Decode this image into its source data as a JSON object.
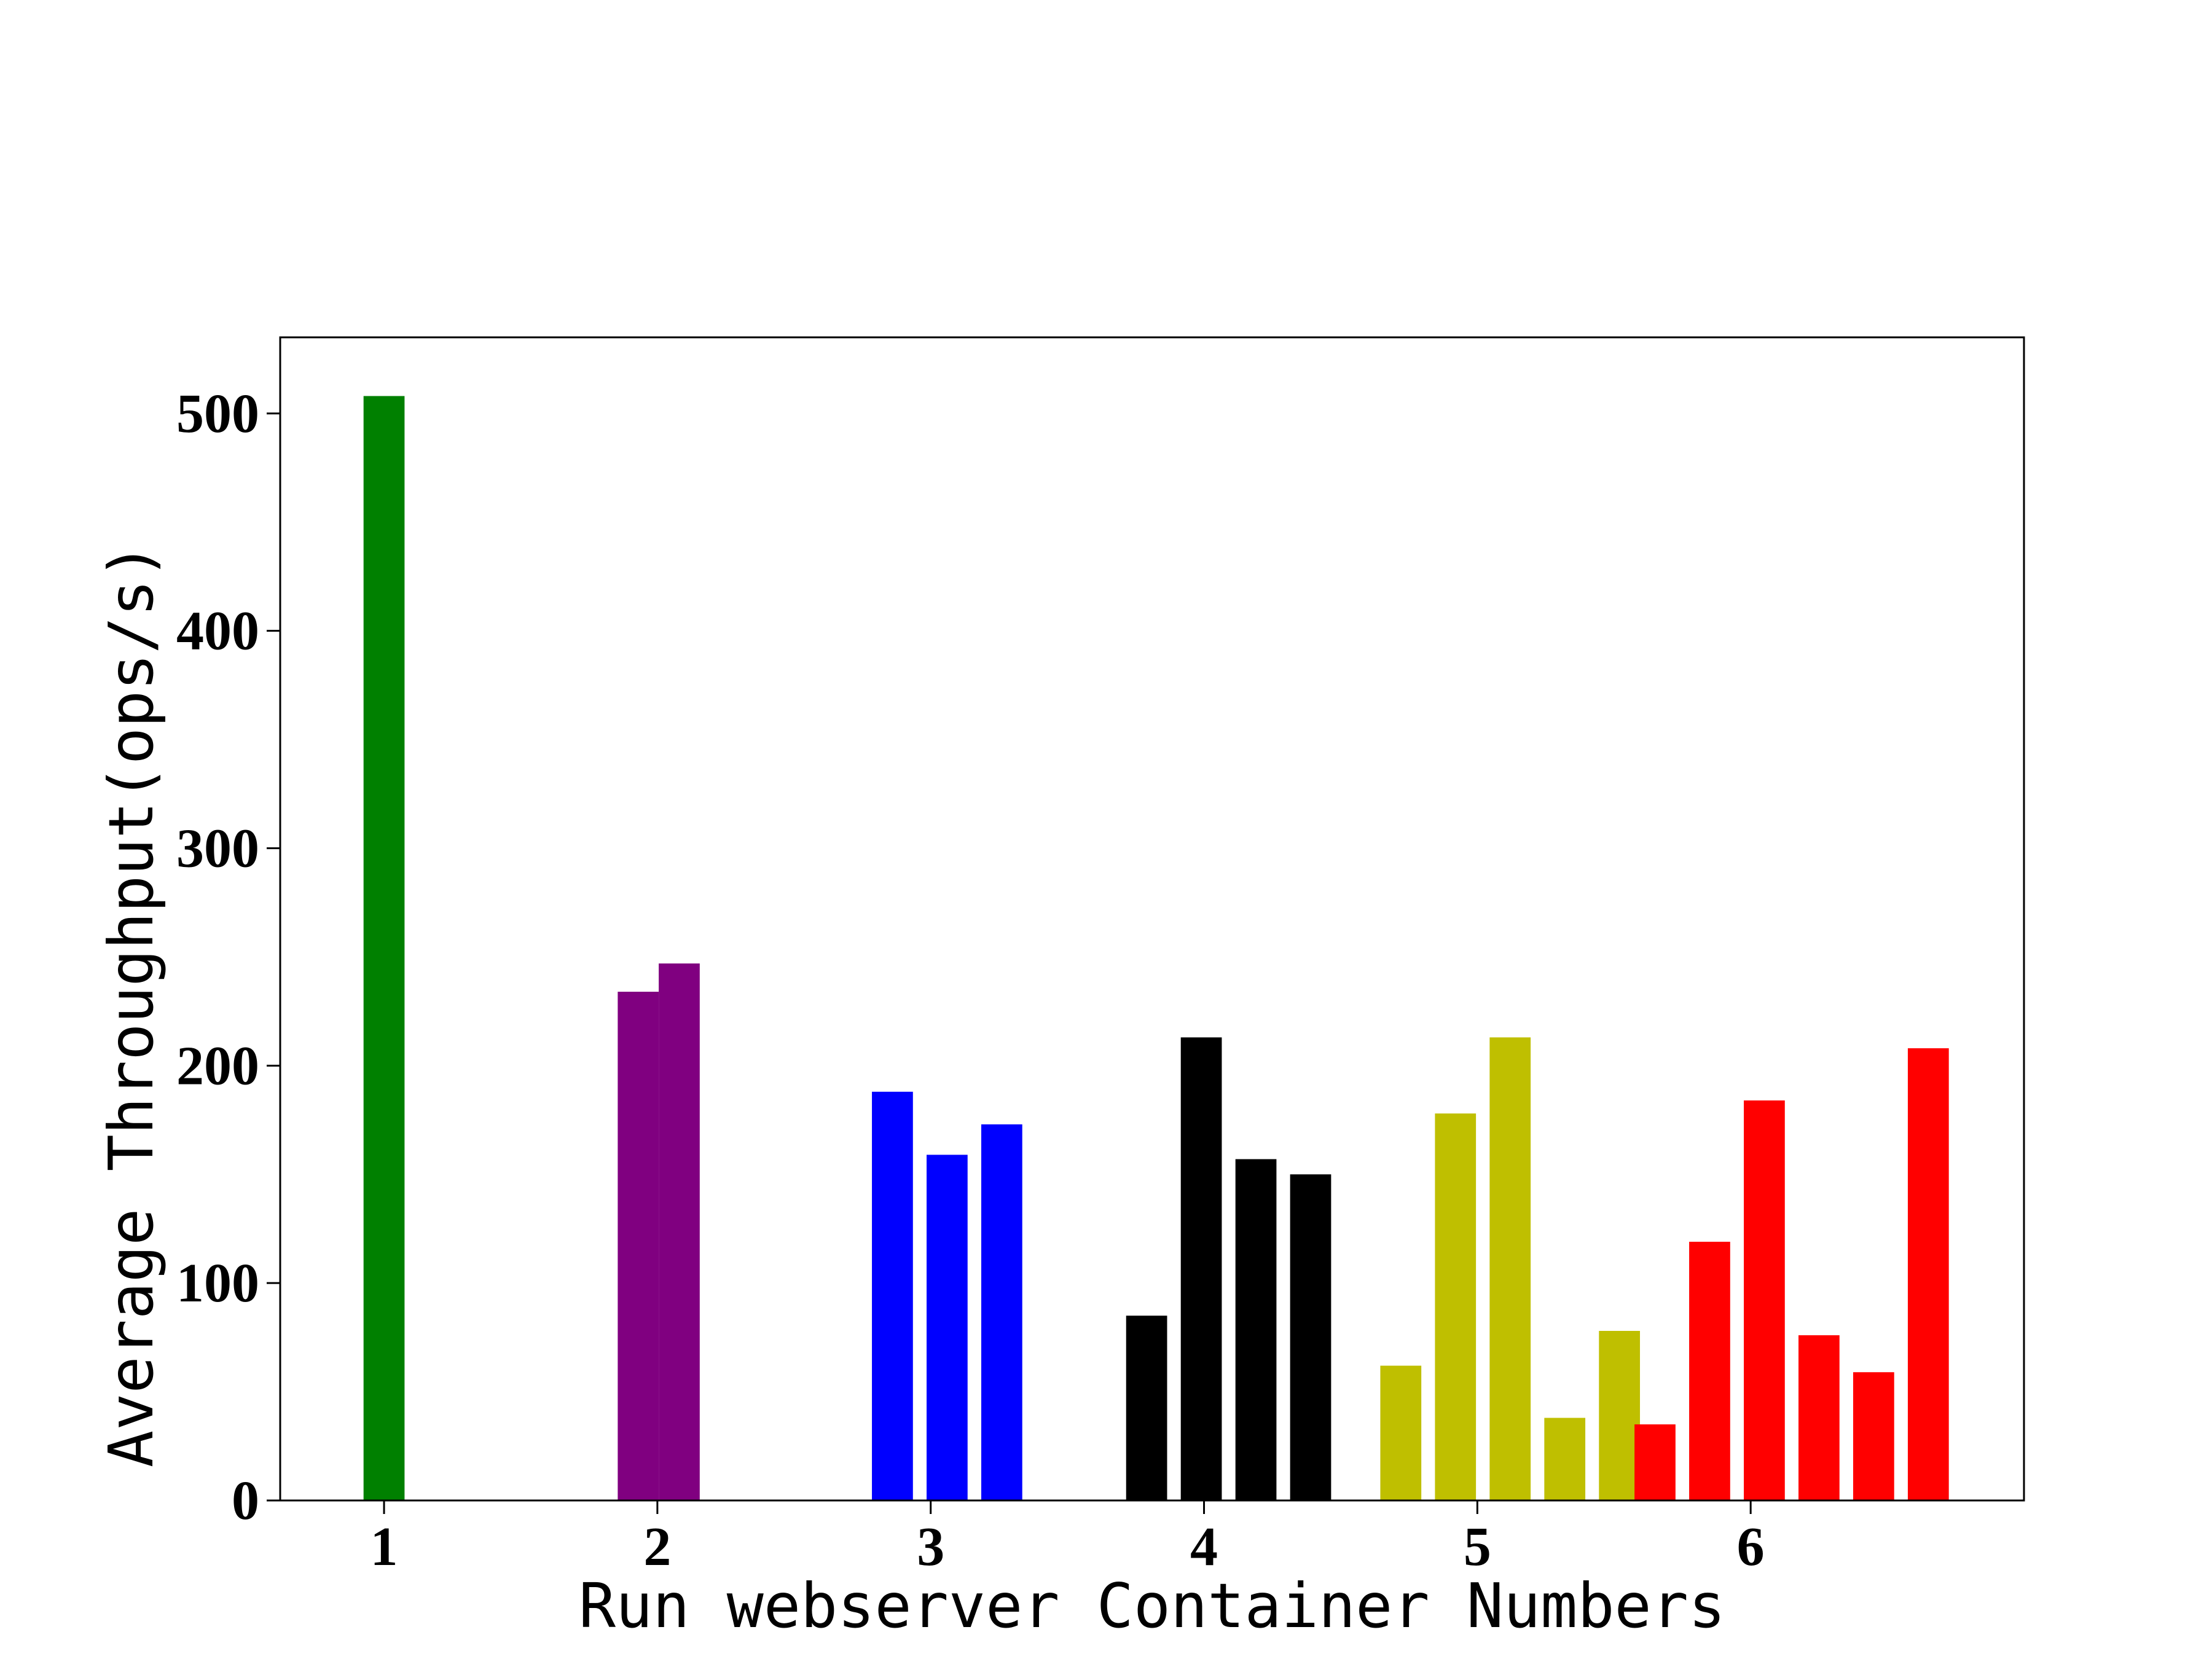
{
  "chart_data": {
    "type": "bar",
    "title": "",
    "xlabel": "Run webserver Container Numbers",
    "ylabel": "Average Throughput(ops/s)",
    "ylim": [
      0,
      535
    ],
    "xlim": [
      0.62,
      7.0
    ],
    "y_ticks": [
      0,
      100,
      200,
      300,
      400,
      500
    ],
    "x_ticks": [
      1,
      2,
      3,
      4,
      5,
      6
    ],
    "grid": false,
    "legend": "none",
    "bar_width": 0.15,
    "groups": [
      {
        "category": 1,
        "color": "#008000",
        "bars": [
          {
            "x": 1.0,
            "value": 508
          }
        ]
      },
      {
        "category": 2,
        "color": "#800080",
        "bars": [
          {
            "x": 1.93,
            "value": 234
          },
          {
            "x": 2.08,
            "value": 247
          }
        ]
      },
      {
        "category": 3,
        "color": "#0000ff",
        "bars": [
          {
            "x": 2.86,
            "value": 188
          },
          {
            "x": 3.06,
            "value": 159
          },
          {
            "x": 3.26,
            "value": 173
          }
        ]
      },
      {
        "category": 4,
        "color": "#000000",
        "bars": [
          {
            "x": 3.79,
            "value": 85
          },
          {
            "x": 3.99,
            "value": 213
          },
          {
            "x": 4.19,
            "value": 157
          },
          {
            "x": 4.39,
            "value": 150
          }
        ]
      },
      {
        "category": 5,
        "color": "#bfbf00",
        "bars": [
          {
            "x": 4.72,
            "value": 62
          },
          {
            "x": 4.92,
            "value": 178
          },
          {
            "x": 5.12,
            "value": 213
          },
          {
            "x": 5.32,
            "value": 38
          },
          {
            "x": 5.52,
            "value": 78
          }
        ]
      },
      {
        "category": 6,
        "color": "#ff0000",
        "bars": [
          {
            "x": 5.65,
            "value": 35
          },
          {
            "x": 5.85,
            "value": 119
          },
          {
            "x": 6.05,
            "value": 184
          },
          {
            "x": 6.25,
            "value": 76
          },
          {
            "x": 6.45,
            "value": 59
          },
          {
            "x": 6.65,
            "value": 208
          }
        ]
      }
    ]
  }
}
